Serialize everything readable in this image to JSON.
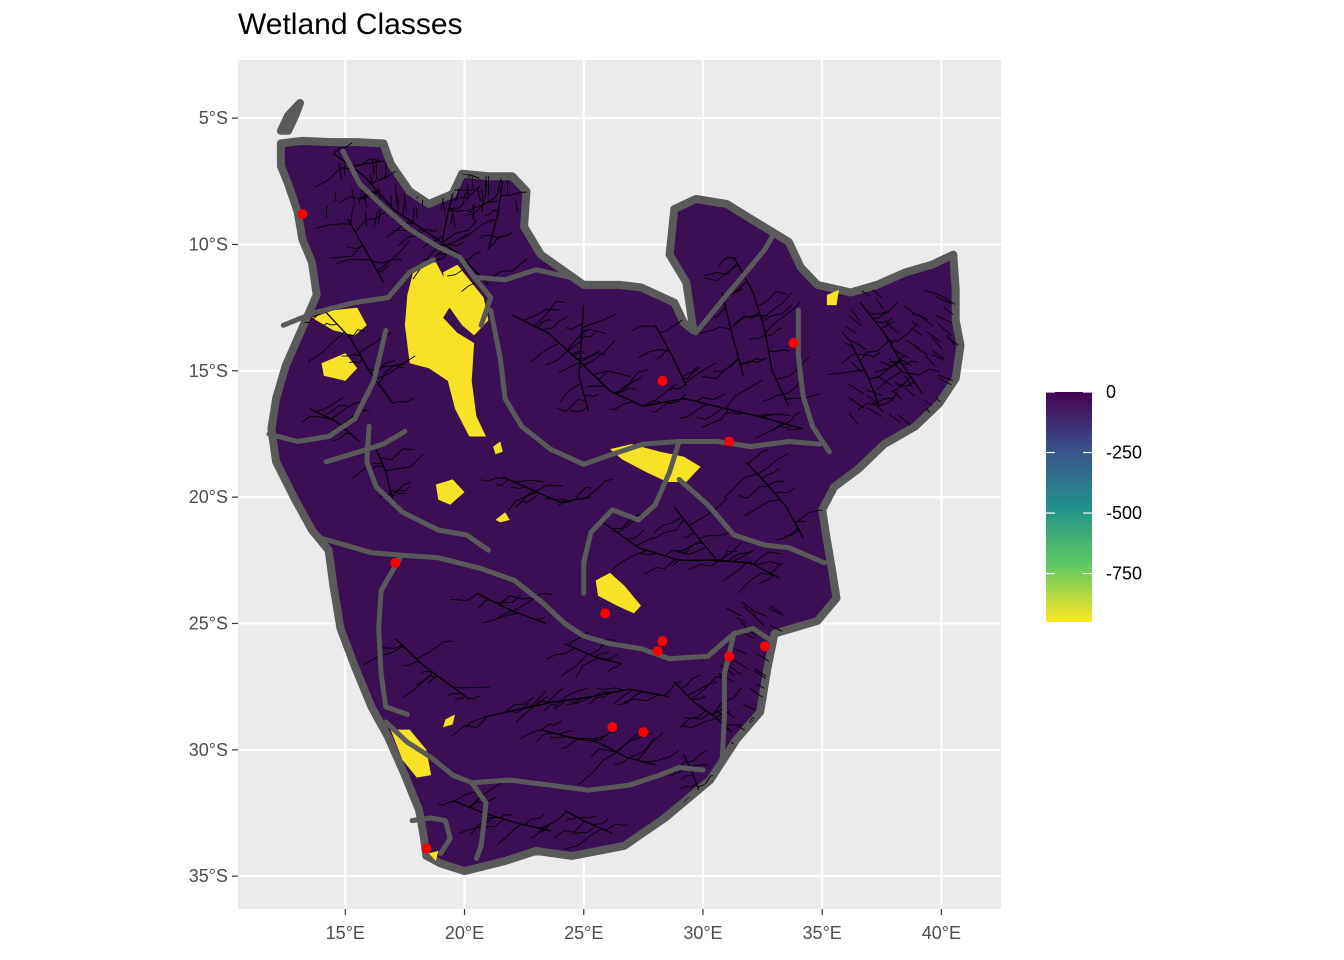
{
  "title": "Wetland Classes",
  "map": {
    "lon_range": [
      10.5,
      42.5
    ],
    "lat_range": [
      -36.3,
      -2.7
    ],
    "panel_bg": "#ebebeb",
    "grid_color": "#ffffff",
    "land_color": "#3b0f53",
    "wetland_color": "#f7e225",
    "basin_border_color": "#5a5a5a",
    "river_color": "#000000",
    "point_color": "#ff0000",
    "x_ticks": [
      {
        "value": 15,
        "label": "15°E"
      },
      {
        "value": 20,
        "label": "20°E"
      },
      {
        "value": 25,
        "label": "25°E"
      },
      {
        "value": 30,
        "label": "30°E"
      },
      {
        "value": 35,
        "label": "35°E"
      },
      {
        "value": 40,
        "label": "40°E"
      }
    ],
    "y_ticks": [
      {
        "value": -5,
        "label": "5°S"
      },
      {
        "value": -10,
        "label": "10°S"
      },
      {
        "value": -15,
        "label": "15°S"
      },
      {
        "value": -20,
        "label": "20°S"
      },
      {
        "value": -25,
        "label": "25°S"
      },
      {
        "value": -30,
        "label": "30°S"
      },
      {
        "value": -35,
        "label": "35°S"
      }
    ],
    "points": [
      {
        "lon": 13.2,
        "lat": -8.8
      },
      {
        "lon": 33.8,
        "lat": -13.9
      },
      {
        "lon": 28.3,
        "lat": -15.4
      },
      {
        "lon": 31.1,
        "lat": -17.8
      },
      {
        "lon": 17.1,
        "lat": -22.6
      },
      {
        "lon": 25.9,
        "lat": -24.6
      },
      {
        "lon": 28.3,
        "lat": -25.7
      },
      {
        "lon": 28.1,
        "lat": -26.1
      },
      {
        "lon": 31.1,
        "lat": -26.3
      },
      {
        "lon": 32.6,
        "lat": -25.9
      },
      {
        "lon": 26.2,
        "lat": -29.1
      },
      {
        "lon": 27.5,
        "lat": -29.3
      },
      {
        "lon": 18.4,
        "lat": -33.9
      }
    ]
  },
  "legend": {
    "domain": [
      -950,
      0
    ],
    "breaks": [
      {
        "value": 0,
        "label": "0"
      },
      {
        "value": -250,
        "label": "-250"
      },
      {
        "value": -500,
        "label": "-500"
      },
      {
        "value": -750,
        "label": "-750"
      }
    ],
    "gradient": [
      "#fde725",
      "#5ec962",
      "#21918c",
      "#3b528b",
      "#440154"
    ]
  }
}
